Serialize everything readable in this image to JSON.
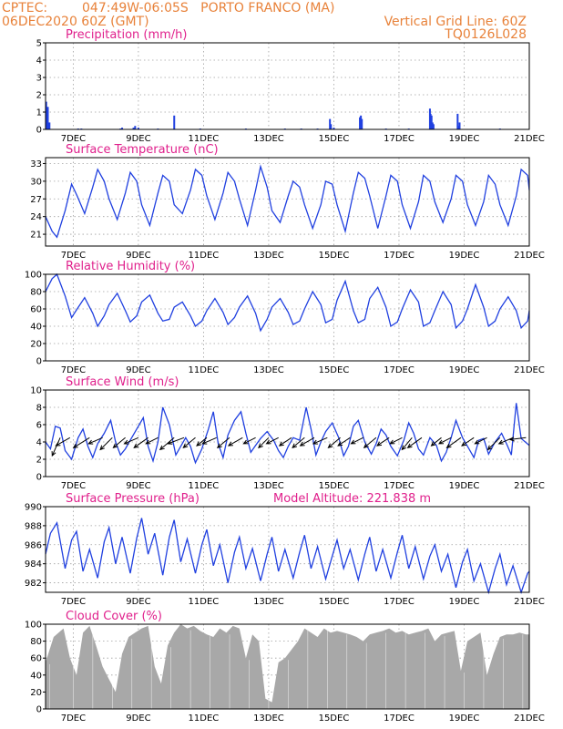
{
  "header": {
    "source": "CPTEC:",
    "location": "047:49W-06:05S   PORTO FRANCO (MA)",
    "run": "06DEC2020 60Z (GMT)",
    "grid_note": "Vertical Grid Line: 60Z",
    "code": "TQ0126L028"
  },
  "colors": {
    "header": "#e8823a",
    "title": "#e0208c",
    "series": "#2040e0",
    "cloud": "#a8a8a8",
    "arrow": "#000000"
  },
  "chart_data": [
    {
      "id": "precip",
      "type": "bar",
      "title": "Precipitation (mm/h)",
      "ylim": [
        0,
        5
      ],
      "yticks": [
        0,
        1,
        2,
        3,
        4,
        5
      ],
      "xlim": [
        6.15,
        21.0
      ],
      "xticks": [
        "7DEC",
        "9DEC",
        "11DEC",
        "13DEC",
        "15DEC",
        "17DEC",
        "19DEC",
        "21DEC"
      ],
      "grid": true,
      "x": [
        6.17,
        6.19,
        6.22,
        6.27,
        7.15,
        7.25,
        8.45,
        8.5,
        8.85,
        8.9,
        9.0,
        9.6,
        10.1,
        10.9,
        12.3,
        13.5,
        14.0,
        14.5,
        14.88,
        14.91,
        15.0,
        15.8,
        15.83,
        15.86,
        16.6,
        17.3,
        17.95,
        17.97,
        18.0,
        18.03,
        18.06,
        18.8,
        18.82,
        18.86,
        20.1
      ],
      "values": [
        1.6,
        1.0,
        1.3,
        0.4,
        0.05,
        0.05,
        0.05,
        0.1,
        0.1,
        0.2,
        0.1,
        0.05,
        0.8,
        0.05,
        0.05,
        0.05,
        0.05,
        0.05,
        0.6,
        0.3,
        0.1,
        0.7,
        0.8,
        0.6,
        0.05,
        0.05,
        1.2,
        0.9,
        0.8,
        0.4,
        0.3,
        0.9,
        0.2,
        0.4,
        0.05
      ]
    },
    {
      "id": "temp",
      "type": "line",
      "title": "Surface Temperature (nC)",
      "ylim": [
        19,
        34
      ],
      "yticks": [
        21,
        24,
        27,
        30,
        33
      ],
      "xlim": [
        6.15,
        21.0
      ],
      "xticks": [
        "7DEC",
        "9DEC",
        "11DEC",
        "13DEC",
        "15DEC",
        "17DEC",
        "19DEC",
        "21DEC"
      ],
      "grid": true,
      "x": [
        6.15,
        6.35,
        6.5,
        6.75,
        6.95,
        7.12,
        7.35,
        7.6,
        7.75,
        7.95,
        8.1,
        8.35,
        8.6,
        8.75,
        8.95,
        9.1,
        9.35,
        9.6,
        9.75,
        9.95,
        10.1,
        10.35,
        10.6,
        10.75,
        10.95,
        11.1,
        11.35,
        11.6,
        11.75,
        11.95,
        12.1,
        12.35,
        12.6,
        12.75,
        12.95,
        13.1,
        13.35,
        13.6,
        13.75,
        13.95,
        14.1,
        14.35,
        14.6,
        14.75,
        14.95,
        15.1,
        15.35,
        15.6,
        15.75,
        15.95,
        16.1,
        16.35,
        16.6,
        16.75,
        16.95,
        17.1,
        17.35,
        17.6,
        17.75,
        17.95,
        18.1,
        18.35,
        18.6,
        18.75,
        18.95,
        19.1,
        19.35,
        19.6,
        19.75,
        19.95,
        20.1,
        20.35,
        20.6,
        20.75,
        20.95,
        21.0
      ],
      "values": [
        24,
        21.5,
        20.5,
        25,
        29.5,
        27.5,
        24.5,
        29,
        32,
        30,
        27,
        23.5,
        28,
        31.5,
        30,
        26,
        22.5,
        28,
        31,
        30,
        26,
        24.5,
        28.5,
        32,
        31,
        27.5,
        23.5,
        28,
        31.5,
        30,
        27,
        22.5,
        28.5,
        32.5,
        29,
        25,
        23,
        27.5,
        30,
        29,
        26,
        22,
        26,
        30,
        29.5,
        26,
        21.5,
        28,
        31.5,
        30.5,
        27.5,
        22,
        27.5,
        31,
        30,
        26,
        22,
        26.5,
        31,
        30,
        26.5,
        23,
        27,
        31,
        30,
        26,
        22.5,
        26.5,
        31,
        29.5,
        26,
        22.5,
        27.5,
        32,
        31,
        28.5
      ]
    },
    {
      "id": "rh",
      "type": "line",
      "title": "Relative Humidity (%)",
      "ylim": [
        0,
        100
      ],
      "yticks": [
        0,
        20,
        40,
        60,
        80,
        100
      ],
      "xlim": [
        6.15,
        21.0
      ],
      "xticks": [
        "7DEC",
        "9DEC",
        "11DEC",
        "13DEC",
        "15DEC",
        "17DEC",
        "19DEC",
        "21DEC"
      ],
      "grid": true,
      "x": [
        6.15,
        6.35,
        6.5,
        6.75,
        6.95,
        7.12,
        7.35,
        7.6,
        7.75,
        7.95,
        8.1,
        8.35,
        8.6,
        8.75,
        8.95,
        9.1,
        9.35,
        9.6,
        9.75,
        9.95,
        10.1,
        10.35,
        10.6,
        10.75,
        10.95,
        11.1,
        11.35,
        11.6,
        11.75,
        11.95,
        12.1,
        12.35,
        12.6,
        12.75,
        12.95,
        13.1,
        13.35,
        13.6,
        13.75,
        13.95,
        14.1,
        14.35,
        14.6,
        14.75,
        14.95,
        15.1,
        15.35,
        15.6,
        15.75,
        15.95,
        16.1,
        16.35,
        16.6,
        16.75,
        16.95,
        17.1,
        17.35,
        17.6,
        17.75,
        17.95,
        18.1,
        18.35,
        18.6,
        18.75,
        18.95,
        19.1,
        19.35,
        19.6,
        19.75,
        19.95,
        20.1,
        20.35,
        20.6,
        20.75,
        20.95,
        21.0
      ],
      "values": [
        80,
        95,
        100,
        75,
        50,
        60,
        73,
        55,
        40,
        52,
        65,
        78,
        58,
        45,
        52,
        68,
        76,
        55,
        46,
        48,
        62,
        68,
        52,
        40,
        46,
        58,
        72,
        56,
        42,
        50,
        62,
        75,
        55,
        35,
        48,
        62,
        72,
        56,
        42,
        46,
        60,
        80,
        65,
        44,
        48,
        70,
        92,
        58,
        44,
        48,
        72,
        85,
        62,
        40,
        45,
        60,
        82,
        68,
        40,
        44,
        58,
        80,
        65,
        38,
        46,
        60,
        88,
        62,
        40,
        46,
        60,
        74,
        58,
        38,
        46,
        58
      ]
    },
    {
      "id": "wind",
      "type": "line",
      "title": "Surface Wind (m/s)",
      "ylim": [
        0,
        10
      ],
      "yticks": [
        0,
        2,
        4,
        6,
        8,
        10
      ],
      "xlim": [
        6.15,
        21.0
      ],
      "xticks": [
        "7DEC",
        "9DEC",
        "11DEC",
        "13DEC",
        "15DEC",
        "17DEC",
        "19DEC",
        "21DEC"
      ],
      "grid": true,
      "x": [
        6.15,
        6.3,
        6.45,
        6.6,
        6.75,
        6.95,
        7.15,
        7.3,
        7.45,
        7.6,
        7.75,
        7.95,
        8.15,
        8.3,
        8.45,
        8.6,
        8.75,
        8.95,
        9.15,
        9.3,
        9.45,
        9.6,
        9.75,
        9.95,
        10.15,
        10.3,
        10.45,
        10.6,
        10.75,
        10.95,
        11.15,
        11.3,
        11.45,
        11.6,
        11.75,
        11.95,
        12.15,
        12.3,
        12.45,
        12.6,
        12.75,
        12.95,
        13.15,
        13.3,
        13.45,
        13.6,
        13.75,
        13.95,
        14.15,
        14.3,
        14.45,
        14.6,
        14.75,
        14.95,
        15.15,
        15.3,
        15.45,
        15.6,
        15.75,
        15.95,
        16.15,
        16.3,
        16.45,
        16.6,
        16.75,
        16.95,
        17.15,
        17.3,
        17.45,
        17.6,
        17.75,
        17.95,
        18.15,
        18.3,
        18.45,
        18.6,
        18.75,
        18.95,
        19.15,
        19.3,
        19.45,
        19.6,
        19.75,
        19.95,
        20.15,
        20.3,
        20.45,
        20.6,
        20.75,
        21.0
      ],
      "values": [
        4,
        3.2,
        5.8,
        5.6,
        3,
        2,
        4.5,
        5.5,
        3.5,
        2.2,
        3.8,
        5,
        6.5,
        4,
        2.5,
        3.2,
        4.2,
        5.5,
        6.8,
        3.5,
        1.8,
        4,
        8,
        6,
        2.5,
        3.5,
        4.5,
        3.5,
        1.6,
        3.2,
        5.5,
        7.5,
        3.8,
        2.2,
        4.8,
        6.5,
        7.5,
        5,
        2.8,
        3.6,
        4.4,
        5.2,
        4.2,
        3,
        2.2,
        3.5,
        4.5,
        4.2,
        8,
        5.5,
        2.5,
        4,
        5.2,
        6.2,
        4.5,
        2.4,
        3.5,
        5.8,
        6.5,
        4,
        2.6,
        3.8,
        5.5,
        4.8,
        3.5,
        2.4,
        4.2,
        6.2,
        5,
        3.2,
        2.5,
        4.5,
        3.6,
        1.8,
        2.8,
        4.5,
        6.5,
        4.5,
        3.2,
        2.2,
        4.2,
        4.4,
        2.6,
        4,
        5,
        3.8,
        2.5,
        8.5,
        4.4,
        3.6
      ],
      "arrows_x": [
        6.6,
        6.9,
        7.5,
        7.9,
        8.2,
        8.6,
        9.0,
        9.3,
        9.6,
        10.1,
        10.4,
        10.75,
        11.1,
        11.4,
        11.8,
        12.2,
        12.6,
        13.0,
        13.3,
        13.7,
        14.1,
        14.4,
        14.8,
        15.2,
        15.5,
        15.9,
        16.3,
        16.7,
        17.1,
        17.4,
        17.7,
        18.3,
        18.6,
        18.9,
        19.3,
        19.7,
        20.1,
        20.5,
        20.9
      ],
      "arrows_u": [
        0.4,
        0.7,
        0.8,
        0.7,
        0.6,
        0.6,
        0.7,
        0.7,
        0.6,
        0.7,
        0.8,
        0.6,
        0.5,
        0.7,
        0.6,
        0.7,
        0.6,
        0.5,
        0.6,
        0.6,
        0.6,
        0.7,
        0.7,
        0.6,
        0.6,
        0.6,
        0.6,
        0.6,
        0.6,
        0.5,
        0.7,
        0.5,
        0.6,
        0.7,
        0.6,
        0.6,
        0.6,
        0.7,
        0.8
      ],
      "arrows_v": [
        0.9,
        0.4,
        0.5,
        0.3,
        0.6,
        0.5,
        0.3,
        0.5,
        0.3,
        0.6,
        0.3,
        0.5,
        0.4,
        0.3,
        0.5,
        0.4,
        0.3,
        0.5,
        0.3,
        0.4,
        0.5,
        0.4,
        0.3,
        0.5,
        0.4,
        0.3,
        0.5,
        0.4,
        0.3,
        0.6,
        0.5,
        0.4,
        0.3,
        0.5,
        0.4,
        0.3,
        0.6,
        0.3,
        0.1
      ]
    },
    {
      "id": "pressure",
      "type": "line",
      "title": "Surface Pressure (hPa)",
      "subtitle": "Model Altitude: 221.838 m",
      "ylim": [
        981,
        990
      ],
      "yticks": [
        982,
        984,
        986,
        988,
        990
      ],
      "xlim": [
        6.15,
        21.0
      ],
      "xticks": [
        "7DEC",
        "9DEC",
        "11DEC",
        "13DEC",
        "15DEC",
        "17DEC",
        "19DEC",
        "21DEC"
      ],
      "grid": true,
      "x": [
        6.15,
        6.3,
        6.5,
        6.75,
        6.95,
        7.1,
        7.3,
        7.5,
        7.75,
        7.95,
        8.1,
        8.3,
        8.5,
        8.75,
        8.95,
        9.1,
        9.3,
        9.5,
        9.75,
        9.95,
        10.1,
        10.3,
        10.5,
        10.75,
        10.95,
        11.1,
        11.3,
        11.5,
        11.75,
        11.95,
        12.1,
        12.3,
        12.5,
        12.75,
        12.95,
        13.1,
        13.3,
        13.5,
        13.75,
        13.95,
        14.1,
        14.3,
        14.5,
        14.75,
        14.95,
        15.1,
        15.3,
        15.5,
        15.75,
        15.95,
        16.1,
        16.3,
        16.5,
        16.75,
        16.95,
        17.1,
        17.3,
        17.5,
        17.75,
        17.95,
        18.1,
        18.3,
        18.5,
        18.75,
        18.95,
        19.1,
        19.3,
        19.5,
        19.75,
        19.95,
        20.1,
        20.3,
        20.5,
        20.75,
        20.95,
        21.0
      ],
      "values": [
        985,
        987.2,
        988.3,
        983.5,
        986.5,
        987.4,
        983.2,
        985.5,
        982.5,
        986.3,
        987.8,
        984,
        986.8,
        983,
        986.7,
        988.8,
        985,
        987.2,
        982.8,
        986.8,
        988.6,
        984.2,
        986.6,
        983,
        986,
        987.6,
        983.8,
        986,
        982,
        985.2,
        986.8,
        983.5,
        985.6,
        982.2,
        985,
        986.8,
        983.2,
        985.5,
        982.5,
        985.2,
        987,
        983.5,
        985.8,
        982.4,
        984.8,
        986.5,
        983.5,
        985.5,
        982.3,
        985,
        986.8,
        983.2,
        985.5,
        982.5,
        985.2,
        987,
        983.5,
        985.8,
        982.4,
        984.8,
        986,
        983.2,
        985,
        981.5,
        984.2,
        985.5,
        982.2,
        984,
        981,
        983.5,
        985,
        981.8,
        983.8,
        981,
        983,
        983.2
      ]
    },
    {
      "id": "cloud",
      "type": "area",
      "title": "Cloud Cover (%)",
      "ylim": [
        0,
        100
      ],
      "yticks": [
        0,
        20,
        40,
        60,
        80,
        100
      ],
      "xlim": [
        6.15,
        21.0
      ],
      "xticks": [
        "7DEC",
        "9DEC",
        "11DEC",
        "13DEC",
        "15DEC",
        "17DEC",
        "19DEC",
        "21DEC"
      ],
      "grid": true,
      "x": [
        6.15,
        6.4,
        6.7,
        6.9,
        7.1,
        7.3,
        7.5,
        7.7,
        7.9,
        8.1,
        8.3,
        8.5,
        8.7,
        8.9,
        9.1,
        9.3,
        9.5,
        9.7,
        9.9,
        10.1,
        10.3,
        10.5,
        10.7,
        10.9,
        11.1,
        11.3,
        11.5,
        11.7,
        11.9,
        12.1,
        12.3,
        12.5,
        12.7,
        12.9,
        13.1,
        13.3,
        13.5,
        13.7,
        13.9,
        14.1,
        14.3,
        14.5,
        14.7,
        14.9,
        15.1,
        15.3,
        15.5,
        15.7,
        15.9,
        16.1,
        16.3,
        16.5,
        16.7,
        16.9,
        17.1,
        17.3,
        17.5,
        17.7,
        17.9,
        18.1,
        18.3,
        18.5,
        18.7,
        18.9,
        19.1,
        19.3,
        19.5,
        19.7,
        19.9,
        20.1,
        20.3,
        20.5,
        20.7,
        20.9,
        21.0
      ],
      "values": [
        55,
        85,
        95,
        60,
        40,
        90,
        98,
        75,
        50,
        35,
        20,
        65,
        85,
        90,
        95,
        98,
        50,
        30,
        75,
        90,
        100,
        95,
        98,
        92,
        88,
        85,
        95,
        90,
        98,
        95,
        60,
        88,
        80,
        12,
        8,
        55,
        60,
        70,
        80,
        95,
        90,
        85,
        95,
        90,
        92,
        90,
        88,
        85,
        80,
        88,
        90,
        92,
        95,
        90,
        92,
        88,
        90,
        92,
        95,
        80,
        88,
        90,
        92,
        45,
        80,
        85,
        90,
        40,
        65,
        85,
        88,
        88,
        90,
        88,
        88
      ]
    }
  ]
}
